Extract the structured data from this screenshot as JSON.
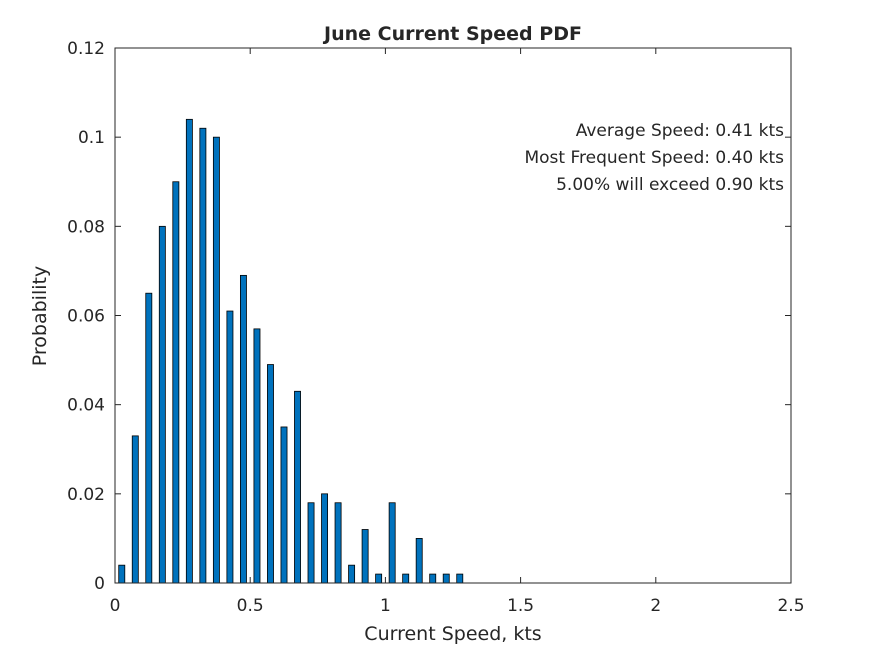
{
  "chart_data": {
    "type": "bar",
    "title": "June Current Speed PDF",
    "xlabel": "Current Speed, kts",
    "ylabel": "Probability",
    "xlim": [
      0,
      2.5
    ],
    "ylim": [
      0,
      0.12
    ],
    "xticks": [
      "0",
      "0.5",
      "1",
      "1.5",
      "2",
      "2.5"
    ],
    "yticks": [
      "0",
      "0.02",
      "0.04",
      "0.06",
      "0.08",
      "0.1",
      "0.12"
    ],
    "grid": false,
    "bar_color": "#0072BD",
    "x": [
      0.025,
      0.075,
      0.125,
      0.175,
      0.225,
      0.275,
      0.325,
      0.375,
      0.425,
      0.475,
      0.525,
      0.575,
      0.625,
      0.675,
      0.725,
      0.775,
      0.825,
      0.875,
      0.925,
      0.975,
      1.025,
      1.075,
      1.125,
      1.175,
      1.225,
      1.275
    ],
    "values": [
      0.004,
      0.033,
      0.065,
      0.08,
      0.09,
      0.104,
      0.102,
      0.1,
      0.061,
      0.069,
      0.057,
      0.049,
      0.035,
      0.043,
      0.018,
      0.02,
      0.018,
      0.004,
      0.012,
      0.002,
      0.018,
      0.002,
      0.01,
      0.002,
      0.002,
      0.002
    ],
    "annotations": [
      "Average Speed: 0.41 kts",
      "Most Frequent Speed: 0.40 kts",
      "5.00% will exceed 0.90 kts"
    ]
  }
}
